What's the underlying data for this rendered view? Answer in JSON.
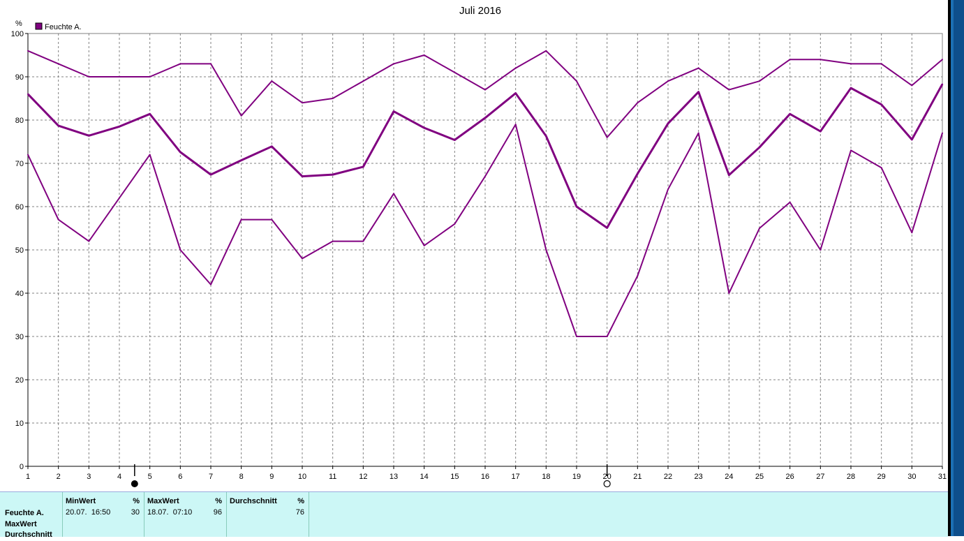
{
  "chart_data": {
    "type": "line",
    "title": "Juli 2016",
    "ylabel": "%",
    "ylim": [
      0,
      100
    ],
    "yticks": [
      0,
      10,
      20,
      30,
      40,
      50,
      60,
      70,
      80,
      90,
      100
    ],
    "x": [
      1,
      2,
      3,
      4,
      5,
      6,
      7,
      8,
      9,
      10,
      11,
      12,
      13,
      14,
      15,
      16,
      17,
      18,
      19,
      20,
      21,
      22,
      23,
      24,
      25,
      26,
      27,
      28,
      29,
      30,
      31
    ],
    "grid": true,
    "legend_position": "top-left",
    "legend": [
      "Feuchte A."
    ],
    "series": [
      {
        "name": "Feuchte A.",
        "kind": "max",
        "color": "#800080",
        "values": [
          96,
          93,
          90,
          90,
          90,
          93,
          93,
          81,
          89,
          84,
          85,
          89,
          93,
          95,
          91,
          87,
          92,
          96,
          89,
          76,
          84,
          89,
          92,
          87,
          89,
          94,
          94,
          93,
          93,
          88,
          94
        ]
      },
      {
        "name": "Feuchte A.",
        "kind": "average",
        "color": "#800080",
        "values": [
          86,
          78.7,
          76.4,
          78.5,
          81.4,
          72.6,
          67.4,
          70.7,
          73.9,
          67,
          67.4,
          69.2,
          82,
          78.2,
          75.4,
          80.5,
          86.2,
          76.3,
          60,
          55.1,
          67.6,
          79.2,
          86.5,
          67.3,
          73.7,
          81.4,
          77.4,
          87.4,
          83.6,
          75.5,
          88.3
        ]
      },
      {
        "name": "Feuchte A.",
        "kind": "min",
        "color": "#800080",
        "values": [
          72,
          57,
          52,
          62,
          72,
          50,
          42,
          57,
          57,
          48,
          52,
          52,
          63,
          51,
          56,
          67,
          79,
          50,
          30,
          30,
          44,
          64,
          77,
          40,
          55,
          61,
          50,
          73,
          69,
          54,
          77
        ]
      }
    ],
    "markers": [
      {
        "day": 4.5,
        "symbol": "new-moon"
      },
      {
        "day": 20,
        "symbol": "full-moon"
      }
    ]
  },
  "stats": {
    "row_labels": [
      "Feuchte A.",
      "MaxWert",
      "Durchschnitt"
    ],
    "columns": [
      {
        "header": "MinWert",
        "unit": "%",
        "time": "20.07.  16:50",
        "value": "30"
      },
      {
        "header": "MaxWert",
        "unit": "%",
        "time": "18.07.  07:10",
        "value": "96"
      },
      {
        "header": "Durchschnitt",
        "unit": "%",
        "time": "",
        "value": "76"
      }
    ]
  },
  "colors": {
    "series": "#800080",
    "grid": "#808080",
    "panel_bg": "#ccf7f6",
    "right_bar": "#1b6fb4"
  }
}
